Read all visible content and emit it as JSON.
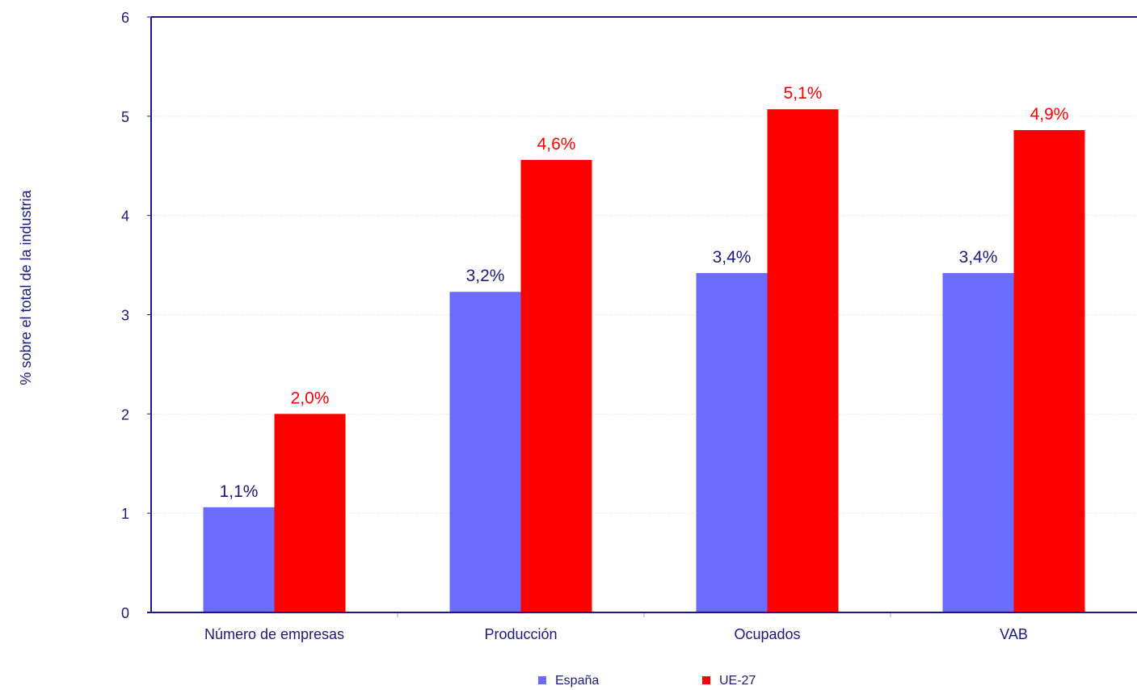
{
  "chart_data": {
    "type": "bar",
    "categories": [
      "Número de empresas",
      "Producción",
      "Ocupados",
      "VAB"
    ],
    "series": [
      {
        "name": "España",
        "color": "#6b6bff",
        "values": [
          1.06,
          3.23,
          3.42,
          3.42
        ],
        "labels": [
          "1,1%",
          "3,2%",
          "3,4%",
          "3,4%"
        ],
        "label_color": "#1a1a80"
      },
      {
        "name": "UE-27",
        "color": "#ff0000",
        "values": [
          2.0,
          4.56,
          5.07,
          4.86
        ],
        "labels": [
          "2,0%",
          "4,6%",
          "5,1%",
          "4,9%"
        ],
        "label_color": "#ff0000"
      }
    ],
    "ylabel": "% sobre el total de la industria",
    "xlabel": "",
    "ylim": [
      0,
      6
    ],
    "yticks": [
      "0",
      "1",
      "2",
      "3",
      "4",
      "5",
      "6"
    ],
    "grid": true,
    "legend_position": "bottom",
    "axis_color": "#1a1a80"
  }
}
